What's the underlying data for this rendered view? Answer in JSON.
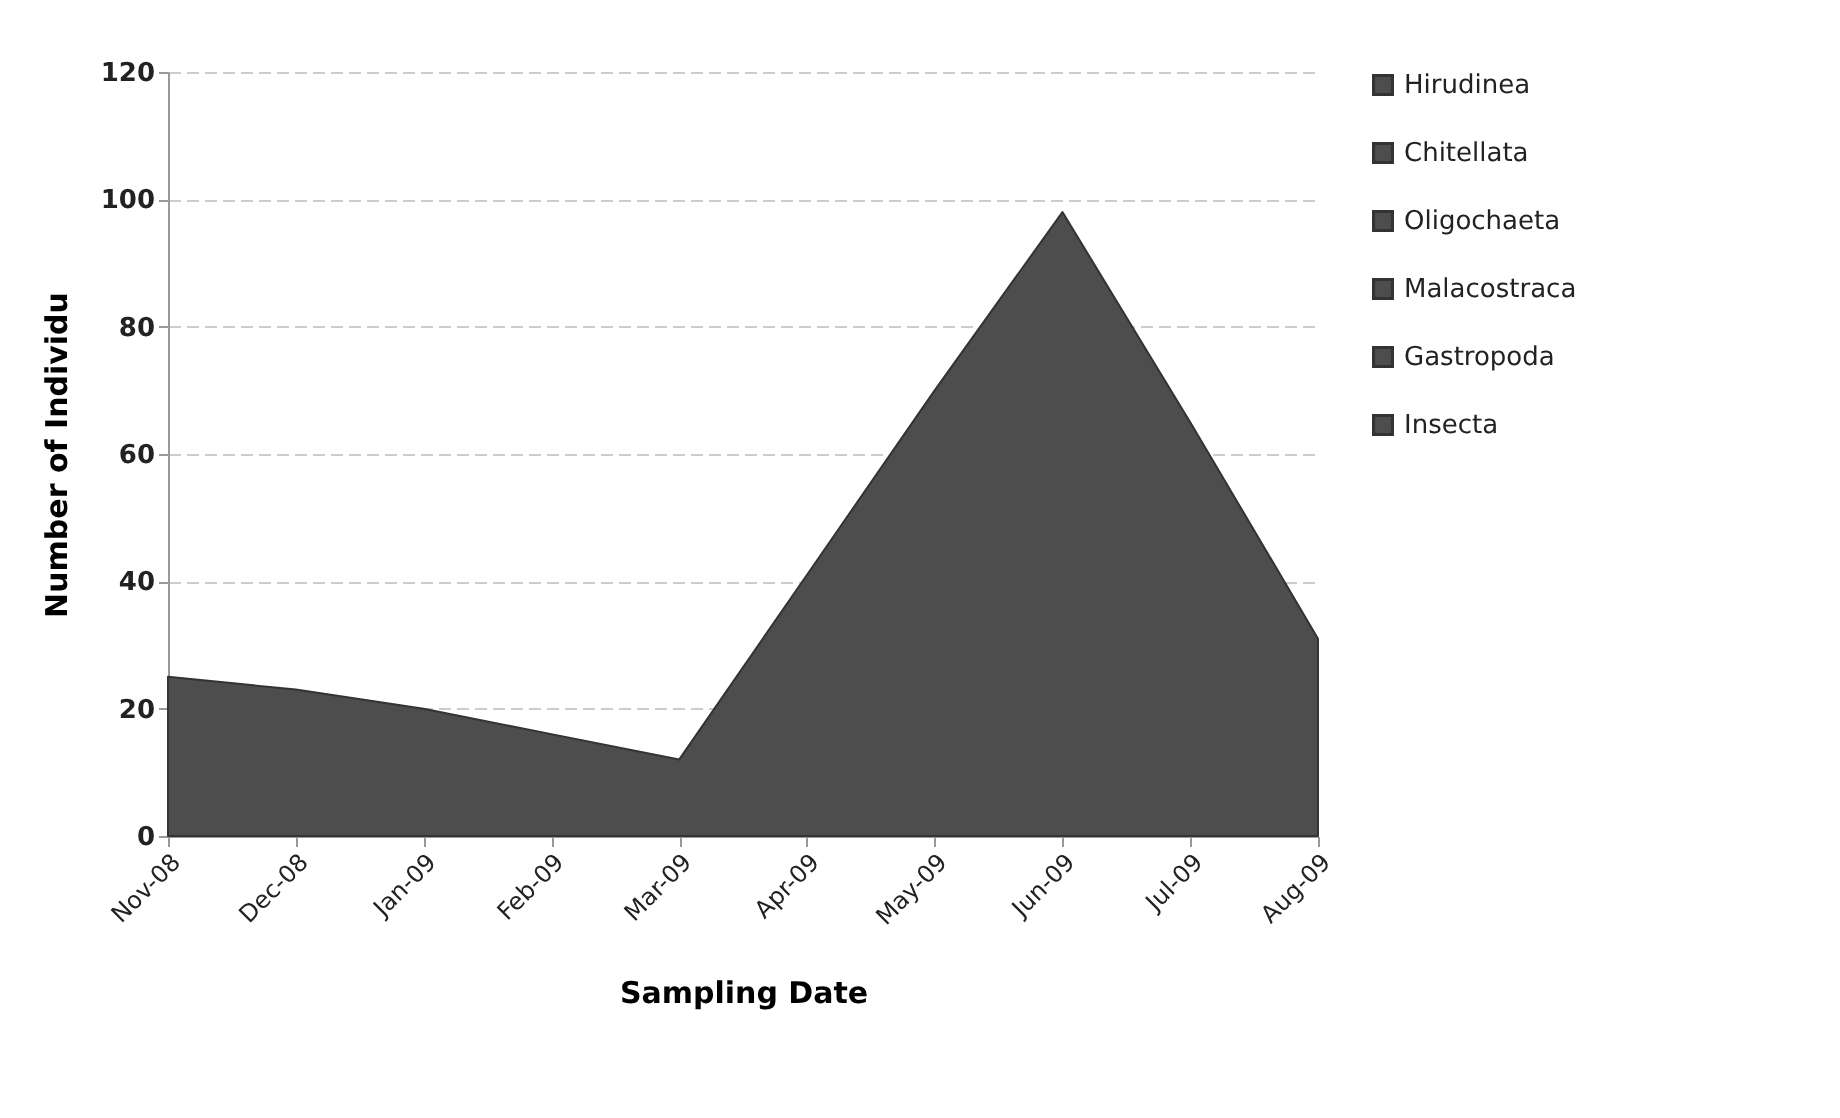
{
  "chart_data": {
    "type": "area",
    "xlabel": "Sampling Date",
    "ylabel": "Number of Individu",
    "categories": [
      "Nov-08",
      "Dec-08",
      "Jan-09",
      "Feb-09",
      "Mar-09",
      "Apr-09",
      "May-09",
      "Jun-09",
      "Jul-09",
      "Aug-09"
    ],
    "series": [
      {
        "name": "Insecta",
        "color": "#4d4d4d",
        "values": [
          25,
          23,
          20,
          16,
          12,
          41,
          70,
          98,
          65,
          31
        ]
      },
      {
        "name": "Gastropoda",
        "color": "#4d4d4d",
        "values": [
          null,
          null,
          null,
          null,
          null,
          null,
          null,
          null,
          null,
          null
        ]
      },
      {
        "name": "Malacostraca",
        "color": "#4d4d4d",
        "values": [
          null,
          null,
          null,
          null,
          null,
          null,
          null,
          null,
          null,
          null
        ]
      },
      {
        "name": "Oligochaeta",
        "color": "#4d4d4d",
        "values": [
          null,
          null,
          null,
          null,
          null,
          null,
          null,
          null,
          null,
          null
        ]
      },
      {
        "name": "Chitellata",
        "color": "#4d4d4d",
        "values": [
          null,
          null,
          null,
          null,
          null,
          null,
          null,
          null,
          null,
          null
        ]
      },
      {
        "name": "Hirudinea",
        "color": "#4d4d4d",
        "values": [
          null,
          null,
          null,
          null,
          null,
          null,
          null,
          null,
          null,
          null
        ]
      }
    ],
    "ylim": [
      0,
      120
    ],
    "yticks": [
      0,
      20,
      40,
      60,
      80,
      100,
      120
    ],
    "grid": "y",
    "legend": "right"
  }
}
